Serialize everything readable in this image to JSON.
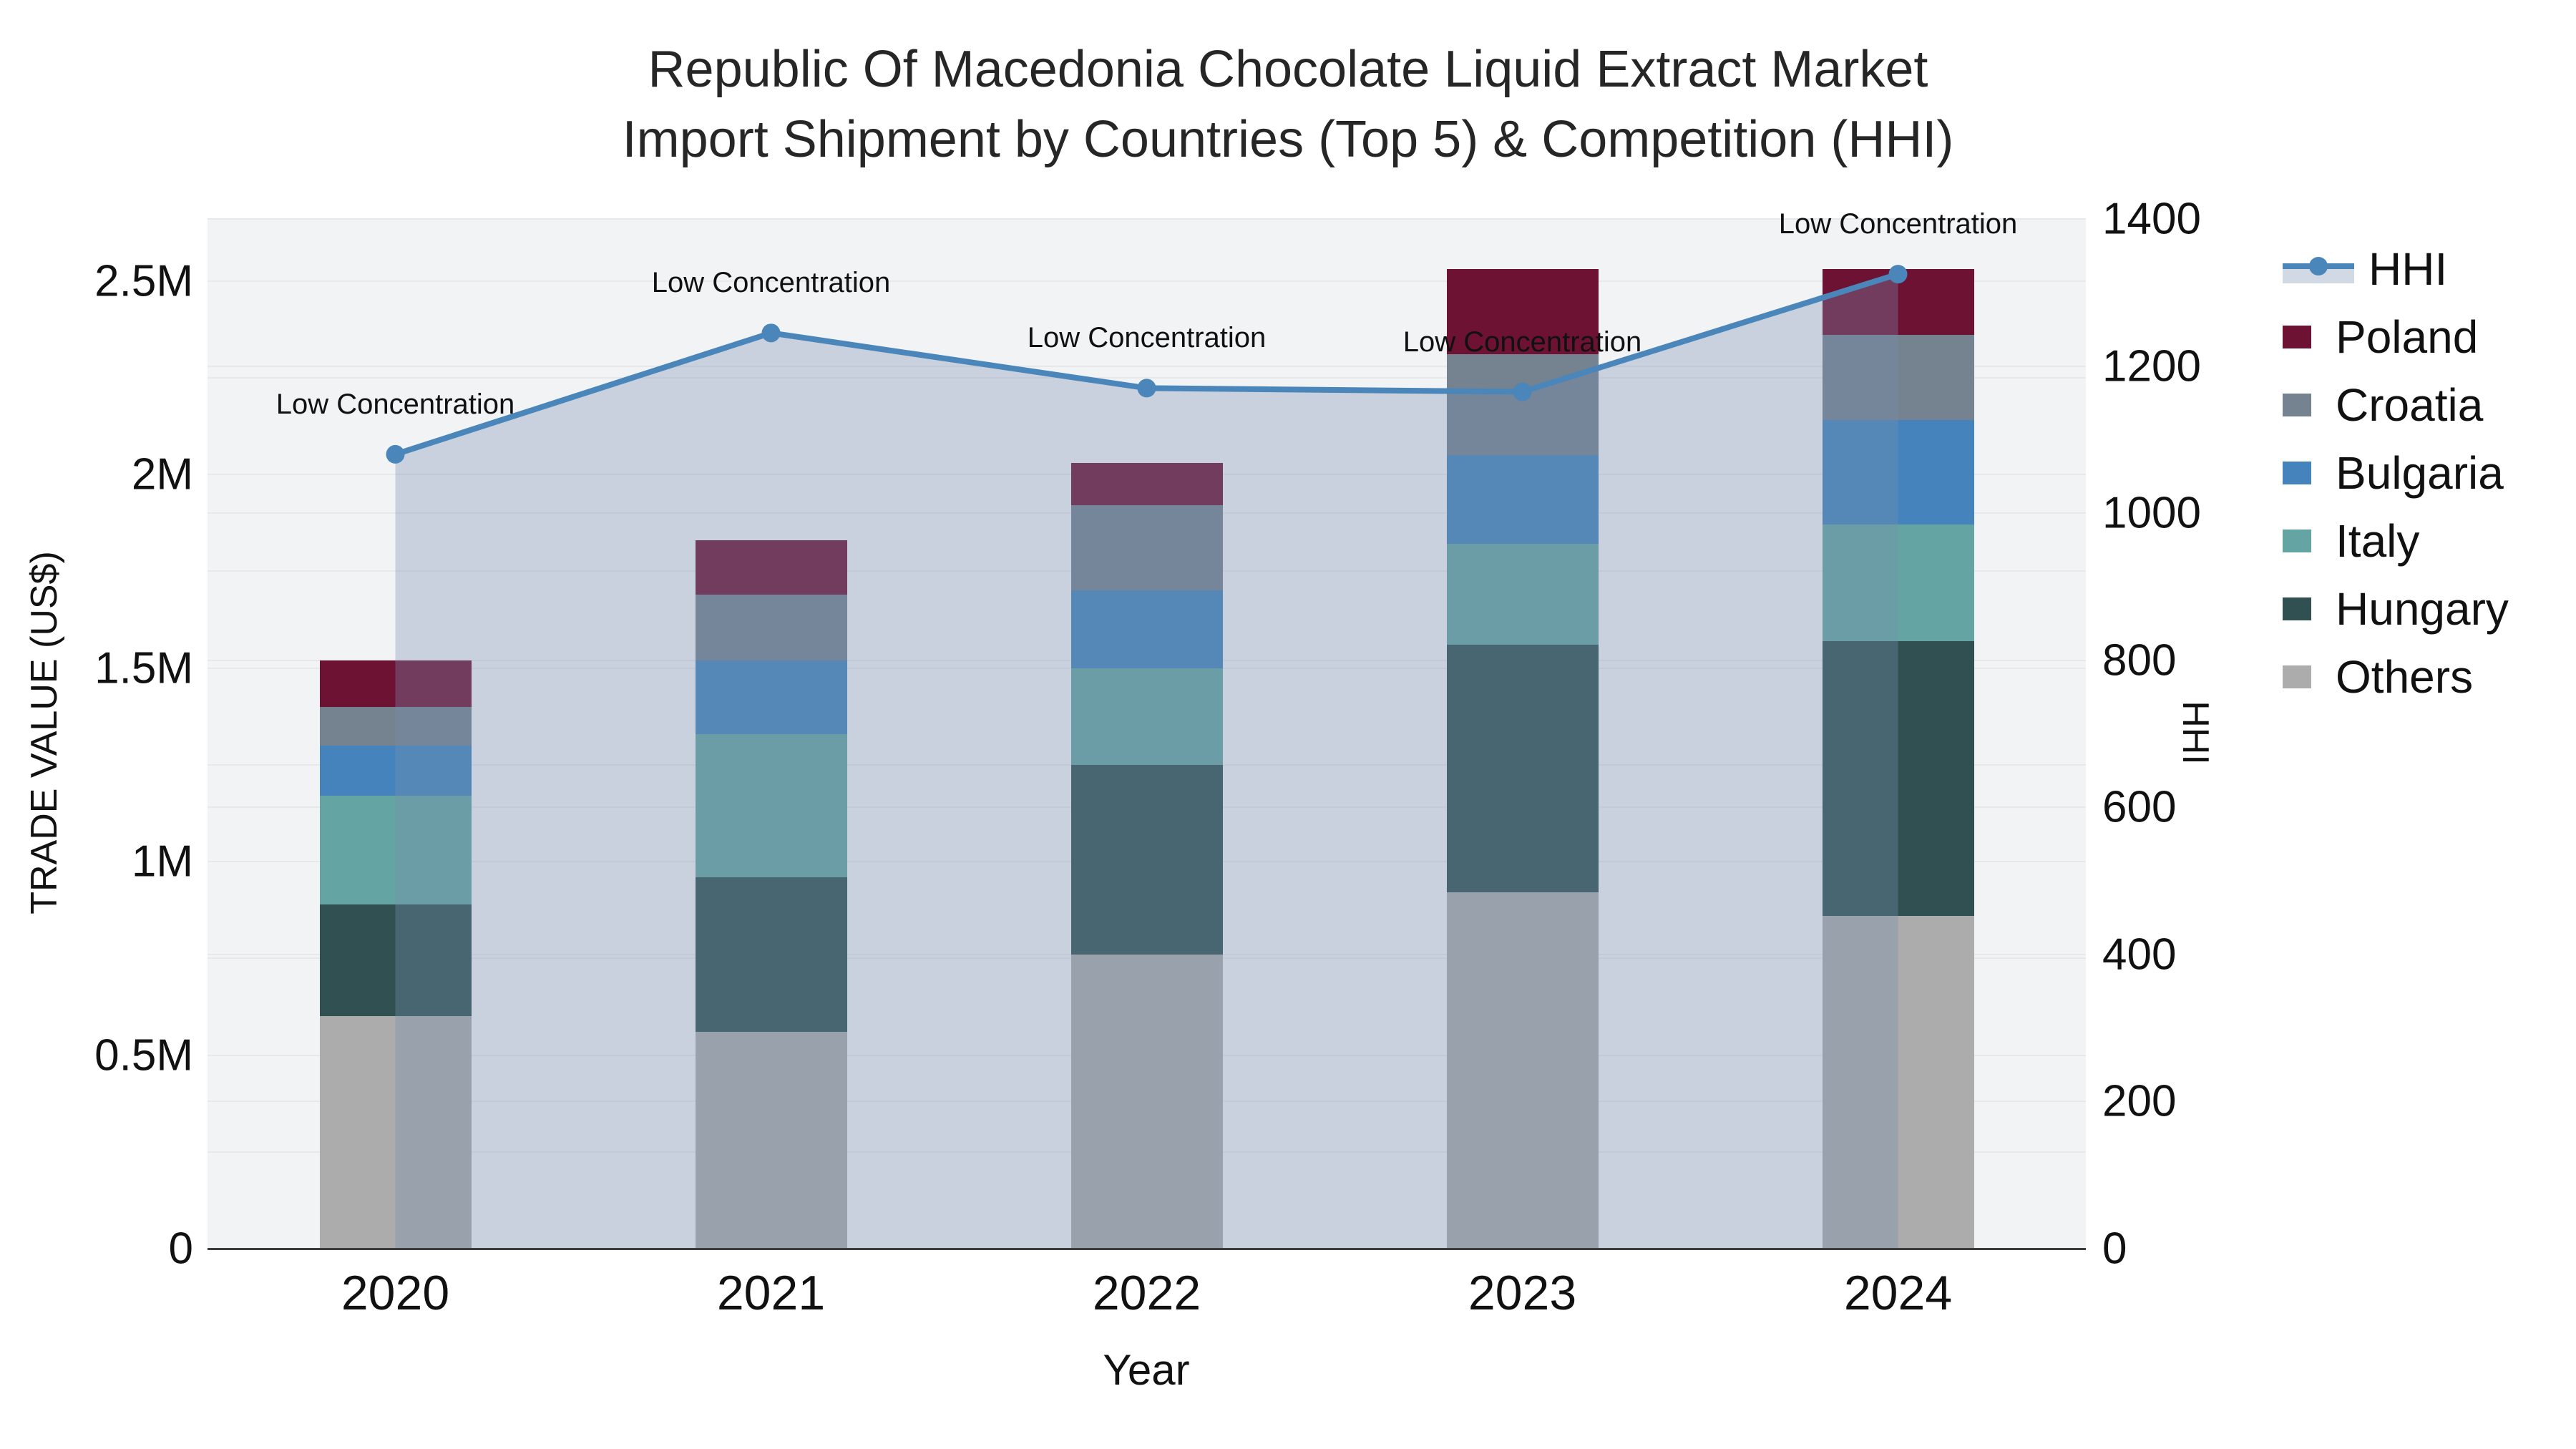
{
  "title_line1": "Republic Of Macedonia Chocolate Liquid Extract Market",
  "title_line2": "Import Shipment by Countries (Top 5) & Competition (HHI)",
  "colors": {
    "hhi_line": "#4a86ba",
    "hhi_fill": "rgba(120,145,175,0.34)",
    "poland": "#6e1233",
    "croatia": "#75828f",
    "bulgaria": "#4483bb",
    "italy": "#64a5a3",
    "hungary": "#305052",
    "others": "#abacab",
    "plot_bg": "#f2f3f4",
    "gridline": "#e7e8ea",
    "axis_line": "#3c3c3c"
  },
  "chart_data": {
    "type": "bar",
    "stacked": true,
    "title": "Republic Of Macedonia Chocolate Liquid Extract Market Import Shipment by Countries (Top 5) & Competition (HHI)",
    "categories": [
      "2020",
      "2021",
      "2022",
      "2023",
      "2024"
    ],
    "xlabel": "Year",
    "ylabel_left": "TRADE VALUE (US$)",
    "ylabel_right": "HHI",
    "ylim_left": [
      0,
      2660000
    ],
    "ylim_right": [
      0,
      1400
    ],
    "yticks_left": {
      "labels": [
        "0",
        "0.5M",
        "1M",
        "1.5M",
        "2M",
        "2.5M"
      ],
      "values": [
        0,
        500000,
        1000000,
        1500000,
        2000000,
        2500000
      ]
    },
    "yticks_right": {
      "labels": [
        "0",
        "200",
        "400",
        "600",
        "800",
        "1000",
        "1200",
        "1400"
      ],
      "values": [
        0,
        200,
        400,
        600,
        800,
        1000,
        1200,
        1400
      ]
    },
    "grid": true,
    "legend_position": "right",
    "series": [
      {
        "name": "Poland",
        "color_key": "poland",
        "values": [
          120000,
          140000,
          110000,
          220000,
          170000
        ]
      },
      {
        "name": "Croatia",
        "color_key": "croatia",
        "values": [
          100000,
          170000,
          220000,
          260000,
          220000
        ]
      },
      {
        "name": "Bulgaria",
        "color_key": "bulgaria",
        "values": [
          130000,
          190000,
          200000,
          230000,
          270000
        ]
      },
      {
        "name": "Italy",
        "color_key": "italy",
        "values": [
          280000,
          370000,
          250000,
          260000,
          300000
        ]
      },
      {
        "name": "Hungary",
        "color_key": "hungary",
        "values": [
          290000,
          400000,
          490000,
          640000,
          710000
        ]
      },
      {
        "name": "Others",
        "color_key": "others",
        "values": [
          600000,
          560000,
          760000,
          920000,
          860000
        ]
      }
    ],
    "line_series": {
      "name": "HHI",
      "axis": "right",
      "values": [
        1080,
        1245,
        1170,
        1165,
        1325
      ],
      "fill_to_zero": true
    },
    "annotations": [
      {
        "x": "2020",
        "text": "Low Concentration"
      },
      {
        "x": "2021",
        "text": "Low Concentration"
      },
      {
        "x": "2022",
        "text": "Low Concentration"
      },
      {
        "x": "2023",
        "text": "Low Concentration"
      },
      {
        "x": "2024",
        "text": "Low Concentration"
      }
    ],
    "legend": [
      "HHI",
      "Poland",
      "Croatia",
      "Bulgaria",
      "Italy",
      "Hungary",
      "Others"
    ]
  }
}
